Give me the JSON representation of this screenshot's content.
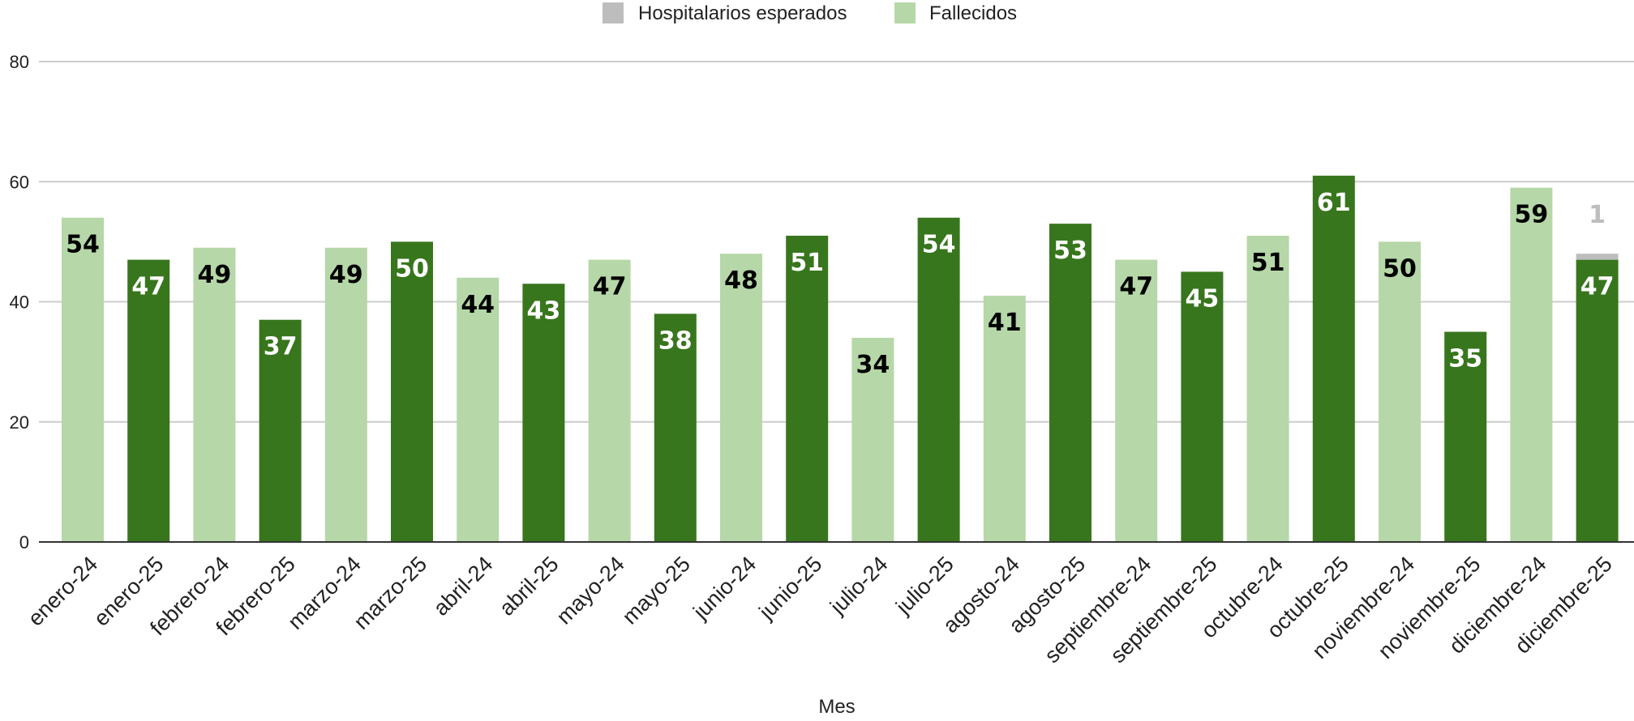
{
  "chart_data": {
    "type": "bar",
    "stacked": true,
    "xlabel": "Mes",
    "ylabel": "",
    "ylim": [
      0,
      80
    ],
    "yticks": [
      0,
      20,
      40,
      60,
      80
    ],
    "grid": true,
    "legend_position": "top",
    "categories": [
      "enero-24",
      "enero-25",
      "febrero-24",
      "febrero-25",
      "marzo-24",
      "marzo-25",
      "abril-24",
      "abril-25",
      "mayo-24",
      "mayo-25",
      "junio-24",
      "junio-25",
      "julio-24",
      "julio-25",
      "agosto-24",
      "agosto-25",
      "septiembre-24",
      "septiembre-25",
      "octubre-24",
      "octubre-25",
      "noviembre-24",
      "noviembre-25",
      "diciembre-24",
      "diciembre-25"
    ],
    "series": [
      {
        "name": "Hospitalarios esperados",
        "color": "#bdbdbd",
        "values": [
          0,
          0,
          0,
          0,
          0,
          0,
          0,
          0,
          0,
          0,
          0,
          0,
          0,
          0,
          0,
          0,
          0,
          0,
          0,
          0,
          0,
          0,
          0,
          1
        ]
      },
      {
        "name": "Fallecidos",
        "color": "#b6d7a8",
        "values": [
          54,
          47,
          49,
          37,
          49,
          50,
          44,
          43,
          47,
          38,
          48,
          51,
          34,
          54,
          41,
          53,
          47,
          45,
          51,
          61,
          50,
          35,
          59,
          47
        ]
      }
    ],
    "bar_colors": {
      "year_24": "#b6d7a8",
      "year_25": "#38761d"
    },
    "label_colors": {
      "on_light": "#000000",
      "on_dark": "#ffffff",
      "expected": "#bdbdbd"
    }
  }
}
